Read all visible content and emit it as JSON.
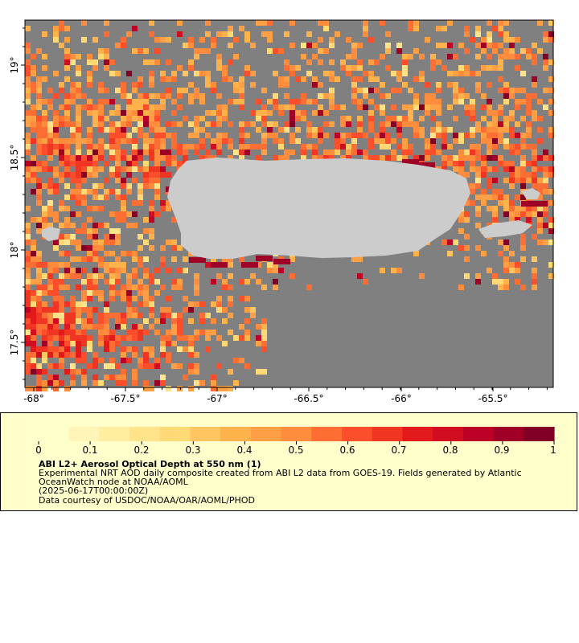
{
  "map": {
    "x_ticks": [
      "-68°",
      "-67.5°",
      "-67°",
      "-66.5°",
      "-66°",
      "-65.5°"
    ],
    "y_ticks": [
      "19°",
      "18.5°",
      "18°",
      "17.5°"
    ],
    "colors": {
      "ocean_no_data": "#808080",
      "land": "#cccccc",
      "frame": "#000000"
    }
  },
  "legend": {
    "tick_labels": [
      "0",
      "0.1",
      "0.2",
      "0.3",
      "0.4",
      "0.5",
      "0.6",
      "0.7",
      "0.8",
      "0.9",
      "1"
    ],
    "title": "ABI L2+ Aerosol Optical Depth at 550 nm (1)",
    "description": "Experimental NRT AOD daily composite created from ABI L2 data from GOES-19. Fields generated by Atlantic OceanWatch node at NOAA/AOML",
    "date": "(2025-06-17T00:00:00Z)",
    "credit": "Data courtesy of USDOC/NOAA/OAR/AOML/PHOD",
    "colors": [
      "#ffffcc",
      "#fff5b8",
      "#ffeda0",
      "#fee38b",
      "#fed976",
      "#fec561",
      "#feb24c",
      "#fd9f44",
      "#fd8d3c",
      "#fc6e33",
      "#fc4e2a",
      "#f03523",
      "#e31a1c",
      "#d00d21",
      "#bd0026",
      "#9f0026",
      "#800026"
    ],
    "background": "#ffffcc"
  }
}
